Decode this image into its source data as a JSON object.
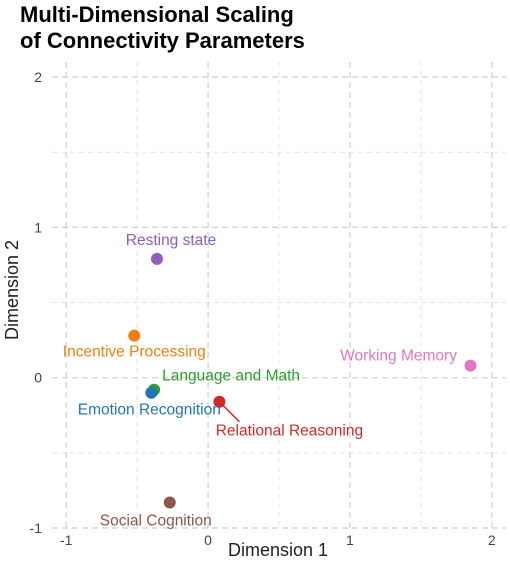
{
  "chart_data": {
    "type": "scatter",
    "title_lines": [
      "Multi-Dimensional Scaling",
      "of Connectivity Parameters"
    ],
    "xlabel": "Dimension 1",
    "ylabel": "Dimension 2",
    "xlim": [
      -1.1,
      2.1
    ],
    "ylim": [
      -1.0,
      2.1
    ],
    "x_ticks": [
      -1,
      0,
      1,
      2
    ],
    "y_ticks": [
      -1,
      0,
      1,
      2
    ],
    "x_tick_labels": [
      "-1",
      "0",
      "1",
      "2"
    ],
    "y_tick_labels": [
      "-1",
      "0",
      "1",
      "2"
    ],
    "grid": true,
    "points": [
      {
        "label": "Resting state",
        "x": -0.36,
        "y": 0.79,
        "color": "#8e5fbf"
      },
      {
        "label": "Incentive Processing",
        "x": -0.52,
        "y": 0.28,
        "color": "#f07f12"
      },
      {
        "label": "Working Memory",
        "x": 1.85,
        "y": 0.08,
        "color": "#e377c2"
      },
      {
        "label": "Language and Math",
        "x": -0.38,
        "y": -0.08,
        "color": "#2ca02c"
      },
      {
        "label": "Emotion Recognition",
        "x": -0.4,
        "y": -0.1,
        "color": "#1f77b4"
      },
      {
        "label": "Relational Reasoning",
        "x": 0.08,
        "y": -0.16,
        "color": "#d62728"
      },
      {
        "label": "Social Cognition",
        "x": -0.27,
        "y": -0.83,
        "color": "#8c564b"
      }
    ]
  }
}
